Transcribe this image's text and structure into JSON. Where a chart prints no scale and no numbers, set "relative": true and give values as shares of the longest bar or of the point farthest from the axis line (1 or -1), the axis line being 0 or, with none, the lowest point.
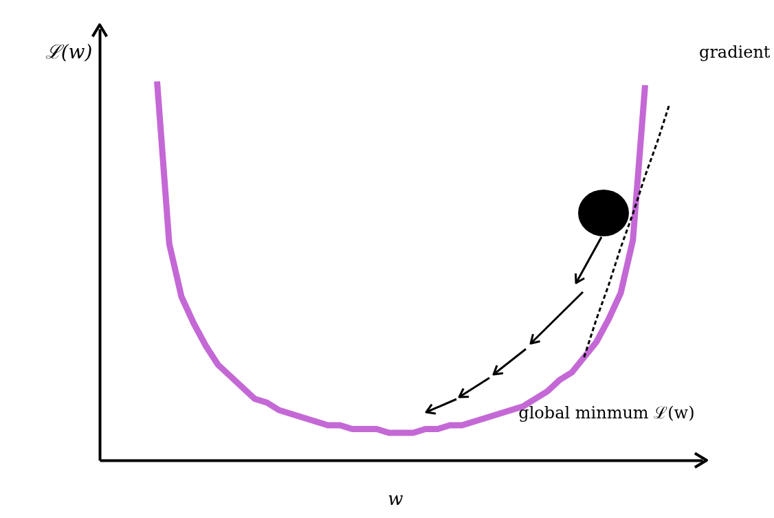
{
  "chart_data": {
    "type": "line",
    "relative": true,
    "xlabel": "w",
    "ylabel": "ℒ(w)",
    "categories": [
      null,
      null,
      null,
      null,
      null,
      null,
      null,
      null,
      null,
      null,
      null,
      null,
      null,
      null,
      null,
      null,
      null,
      null,
      null,
      null,
      null,
      null,
      null,
      null,
      null,
      null,
      null,
      null,
      null,
      null,
      null,
      null,
      null,
      null,
      null,
      null,
      null,
      null,
      null,
      null,
      null,
      null,
      null
    ],
    "series": [
      {
        "color": "#c468d6",
        "values": [
          1.0,
          0.57,
          0.43,
          0.36,
          0.3,
          0.25,
          0.22,
          0.19,
          0.16,
          0.15,
          0.13,
          0.12,
          0.11,
          0.1,
          0.09,
          0.09,
          0.08,
          0.08,
          0.08,
          0.07,
          0.07,
          0.07,
          0.08,
          0.08,
          0.09,
          0.09,
          0.1,
          0.11,
          0.12,
          0.13,
          0.14,
          0.16,
          0.18,
          0.21,
          0.23,
          0.27,
          0.31,
          0.37,
          0.44,
          0.58,
          0.99,
          null,
          null
        ]
      },
      {
        "type": "line",
        "color": "#000000",
        "line_style": "dashed",
        "values": [
          null,
          null,
          null,
          null,
          null,
          null,
          null,
          null,
          null,
          null,
          null,
          null,
          null,
          null,
          null,
          null,
          null,
          null,
          null,
          null,
          null,
          null,
          null,
          null,
          null,
          null,
          null,
          null,
          null,
          null,
          null,
          null,
          null,
          null,
          null,
          0.27,
          0.37,
          0.46,
          0.56,
          0.65,
          0.75,
          0.84,
          0.94
        ]
      }
    ],
    "annotations": [
      "gradient",
      "global minmum ℒ(w)"
    ],
    "grid": false,
    "line_style": "solid",
    "marker": "none"
  }
}
